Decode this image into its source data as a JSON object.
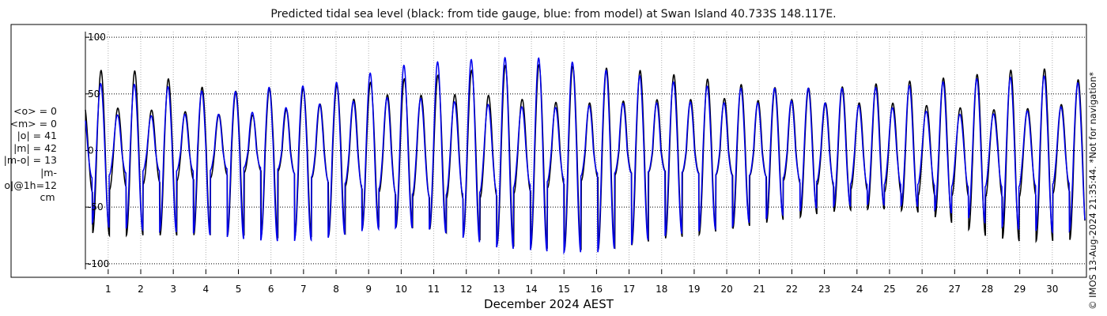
{
  "title": "Predicted tidal sea level (black: from tide gauge, blue: from model) at Swan Island 40.733S 148.117E.",
  "stats": {
    "mean_obs": "<o> = 0",
    "mean_model": "<m> = 0",
    "abs_obs": "|o| = 41",
    "abs_model": "|m| = 42",
    "abs_diff": "|m-o| = 13",
    "abs_diff_1h": "|m-o|@1h=12",
    "unit": "cm"
  },
  "credit": "© IMOS 13-Aug-2024 21:35:44. *Not for navigation*",
  "chart_data": {
    "type": "line",
    "title": "Predicted tidal sea level (black: from tide gauge, blue: from model) at Swan Island 40.733S 148.117E.",
    "xlabel": "December 2024 AEST",
    "ylabel": "",
    "xlim": [
      0.3,
      31.0
    ],
    "ylim": [
      -105,
      105
    ],
    "x_ticks": [
      1,
      2,
      3,
      4,
      5,
      6,
      7,
      8,
      9,
      10,
      11,
      12,
      13,
      14,
      15,
      16,
      17,
      18,
      19,
      20,
      21,
      22,
      23,
      24,
      25,
      26,
      27,
      28,
      29,
      30
    ],
    "y_ticks": [
      -100,
      -50,
      0,
      50,
      100
    ],
    "y_tick_labels": [
      "-100",
      "-50",
      "0",
      "50",
      "100"
    ],
    "grid": true,
    "series": [
      {
        "color": "#000000",
        "x": [
          0.3,
          1.0,
          2.0,
          3.0,
          4.0,
          5.0,
          6.0,
          7.0,
          8.0,
          9.0,
          10.0,
          11.0,
          12.0,
          13.0,
          14.0,
          15.0,
          16.0,
          17.0,
          18.0,
          19.0,
          20.0,
          21.0,
          22.0,
          23.0,
          24.0,
          25.0,
          26.0,
          27.0,
          28.0,
          29.0,
          30.0,
          31.0
        ],
        "high_high": [
          70,
          71,
          70,
          62,
          55,
          52,
          55,
          55,
          58,
          60,
          63,
          66,
          70,
          75,
          76,
          75,
          73,
          72,
          68,
          65,
          60,
          56,
          55,
          55,
          57,
          60,
          62,
          65,
          68,
          72,
          72,
          60
        ],
        "high_low": [
          40,
          38,
          36,
          35,
          33,
          30,
          33,
          40,
          42,
          48,
          50,
          48,
          50,
          48,
          44,
          42,
          42,
          44,
          45,
          45,
          46,
          44,
          45,
          42,
          42,
          42,
          40,
          38,
          36,
          36,
          40,
          42
        ],
        "low_high": [
          -38,
          -35,
          -30,
          -27,
          -25,
          -20,
          -17,
          -22,
          -30,
          -35,
          -40,
          -42,
          -43,
          -40,
          -36,
          -30,
          -24,
          -20,
          -18,
          -20,
          -22,
          -22,
          -28,
          -31,
          -35,
          -37,
          -40,
          -40,
          -41,
          -41,
          -38,
          -35
        ],
        "low_low": [
          -72,
          -75,
          -75,
          -75,
          -75,
          -75,
          -76,
          -77,
          -75,
          -68,
          -68,
          -70,
          -76,
          -84,
          -86,
          -88,
          -88,
          -84,
          -78,
          -75,
          -70,
          -65,
          -60,
          -55,
          -52,
          -52,
          -55,
          -65,
          -76,
          -80,
          -80,
          -78
        ]
      },
      {
        "color": "#0000ee",
        "x": [
          0.3,
          1.0,
          2.0,
          3.0,
          4.0,
          5.0,
          6.0,
          7.0,
          8.0,
          9.0,
          10.0,
          11.0,
          12.0,
          13.0,
          14.0,
          15.0,
          16.0,
          17.0,
          18.0,
          19.0,
          20.0,
          21.0,
          22.0,
          23.0,
          24.0,
          25.0,
          26.0,
          27.0,
          28.0,
          29.0,
          30.0,
          31.0
        ],
        "high_high": [
          57,
          60,
          58,
          56,
          52,
          52,
          56,
          57,
          60,
          68,
          75,
          78,
          80,
          82,
          82,
          80,
          72,
          68,
          62,
          58,
          55,
          55,
          55,
          55,
          55,
          56,
          58,
          62,
          64,
          65,
          66,
          58
        ],
        "high_low": [
          32,
          32,
          30,
          32,
          32,
          32,
          36,
          40,
          42,
          45,
          48,
          45,
          42,
          40,
          38,
          38,
          40,
          42,
          42,
          43,
          42,
          42,
          44,
          42,
          40,
          38,
          35,
          32,
          32,
          34,
          38,
          40
        ],
        "low_high": [
          -25,
          -22,
          -18,
          -18,
          -18,
          -15,
          -15,
          -22,
          -28,
          -32,
          -38,
          -40,
          -38,
          -35,
          -30,
          -25,
          -20,
          -20,
          -18,
          -20,
          -22,
          -22,
          -25,
          -28,
          -30,
          -30,
          -30,
          -32,
          -32,
          -32,
          -30,
          -28
        ],
        "low_low": [
          -62,
          -68,
          -70,
          -72,
          -74,
          -78,
          -80,
          -80,
          -76,
          -70,
          -68,
          -70,
          -78,
          -86,
          -88,
          -90,
          -90,
          -84,
          -76,
          -72,
          -68,
          -62,
          -55,
          -50,
          -48,
          -48,
          -50,
          -56,
          -65,
          -70,
          -72,
          -70
        ]
      }
    ]
  }
}
